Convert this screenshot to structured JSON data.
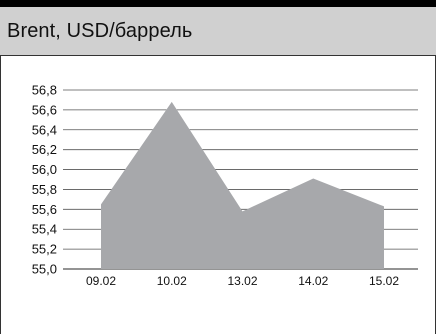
{
  "header": {
    "title": "Brent, USD/баррель"
  },
  "chart_data": {
    "type": "area",
    "title": "Brent, USD/баррель",
    "xlabel": "",
    "ylabel": "",
    "categories": [
      "09.02",
      "10.02",
      "13.02",
      "14.02",
      "15.02"
    ],
    "series": [
      {
        "values": [
          55.65,
          56.68,
          55.58,
          55.91,
          55.63
        ]
      }
    ],
    "y_ticks": [
      "55,0",
      "55,2",
      "55,4",
      "55,6",
      "55,8",
      "56,0",
      "56,2",
      "56,4",
      "56,6",
      "56,8"
    ],
    "ylim": [
      55.0,
      56.8
    ],
    "grid": true,
    "area_color": "#a7a8ab",
    "grid_color": "#555555"
  }
}
